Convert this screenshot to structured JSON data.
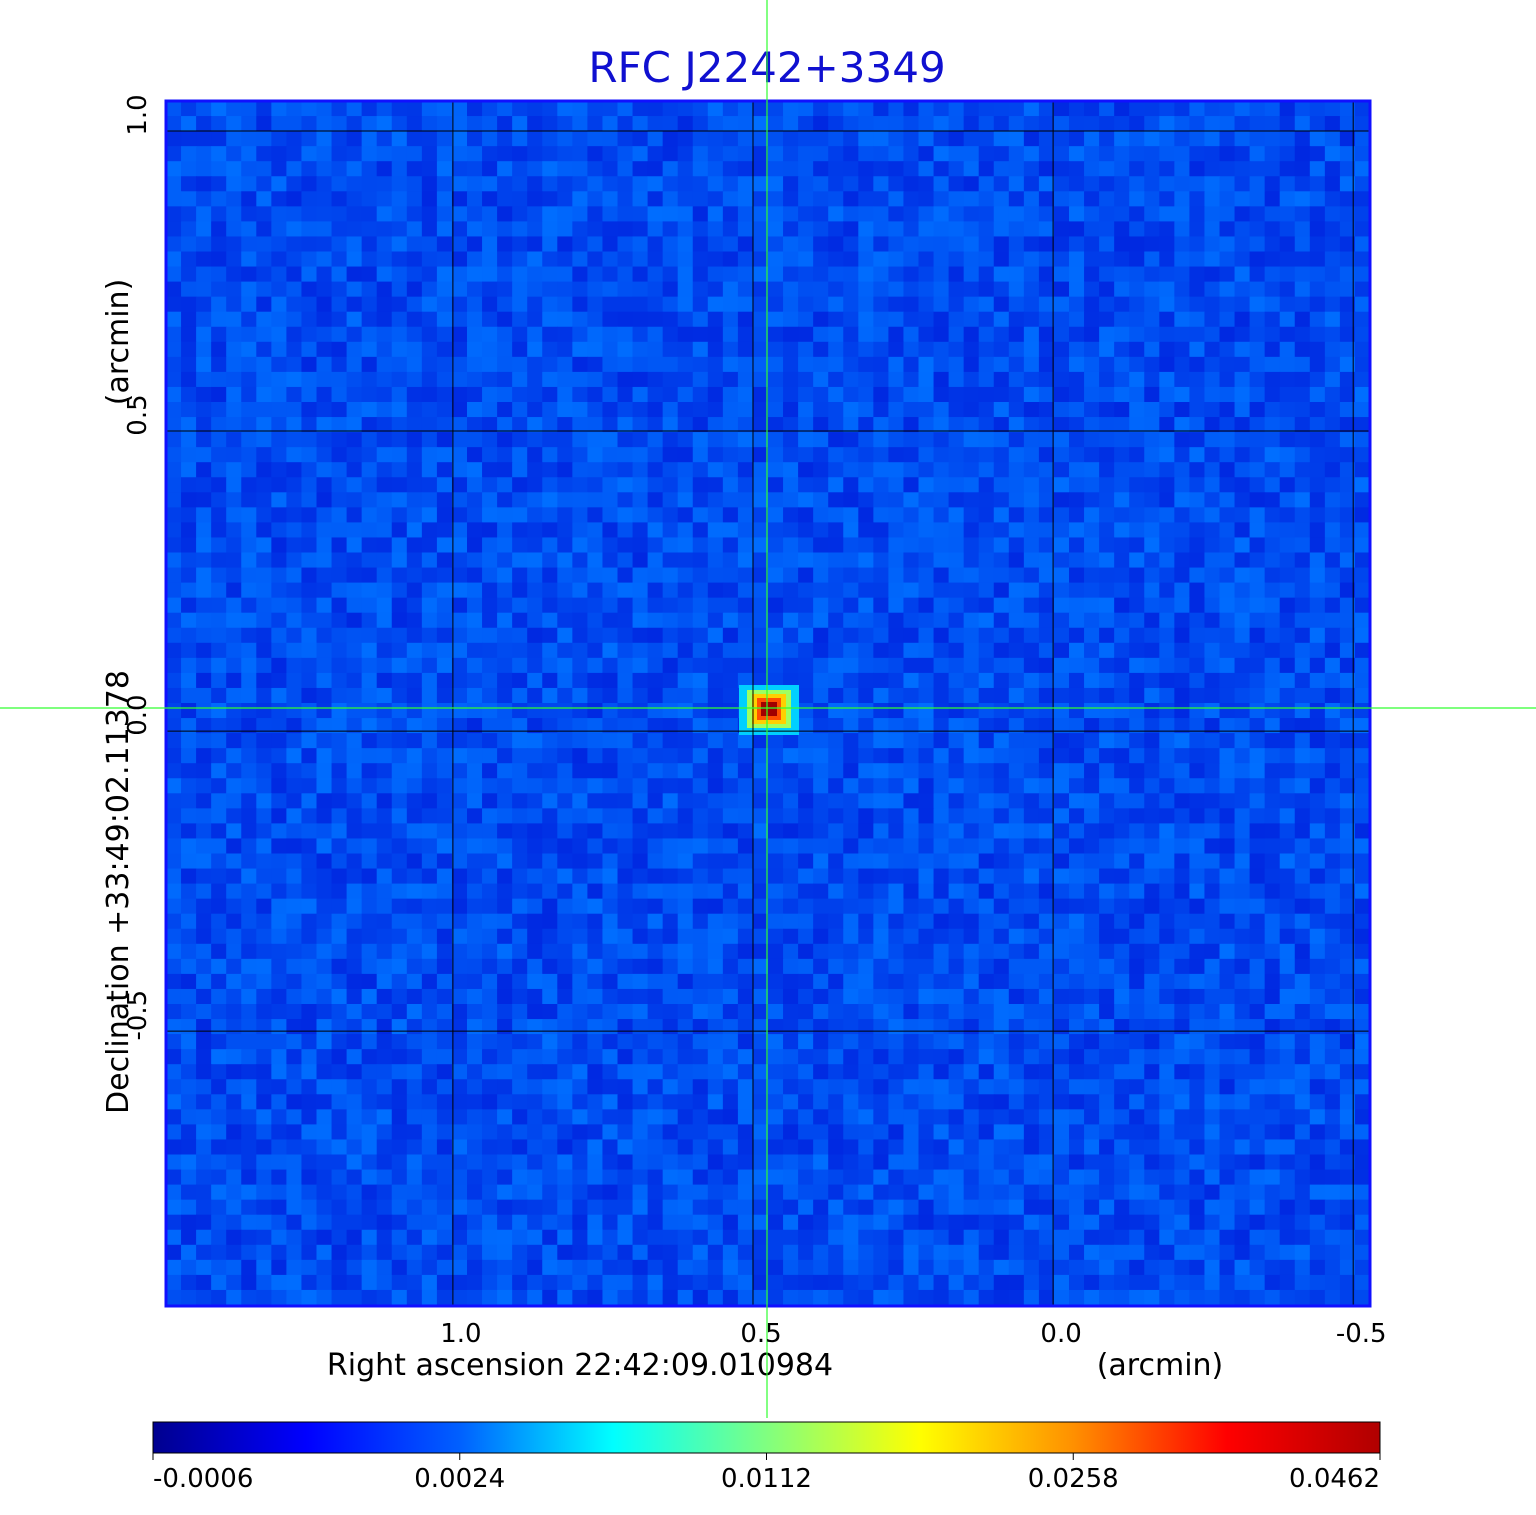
{
  "chart_data": {
    "type": "heatmap",
    "title": "RFC J2242+3349",
    "x_label": "Right ascension  22:42:09.010984",
    "x_unit": "(arcmin)",
    "y_label": "Declination  +33:49:02.11378",
    "y_unit": "(arcmin)",
    "xlim": [
      1.478,
      -0.528
    ],
    "ylim": [
      -0.958,
      1.05
    ],
    "xticks": [
      {
        "value": 1.0,
        "label": "1.0"
      },
      {
        "value": 0.5,
        "label": "0.5"
      },
      {
        "value": 0.0,
        "label": "0.0"
      },
      {
        "value": -0.5,
        "label": "-0.5"
      }
    ],
    "yticks": [
      {
        "value": 1.0,
        "label": "1.0"
      },
      {
        "value": 0.5,
        "label": "0.5"
      },
      {
        "value": 0.0,
        "label": "0.0"
      },
      {
        "value": -0.5,
        "label": "-0.5"
      }
    ],
    "grid": true,
    "colorbar": {
      "ticks": [
        -0.0006,
        0.0024,
        0.0112,
        0.0258,
        0.0462
      ]
    }
  }
}
